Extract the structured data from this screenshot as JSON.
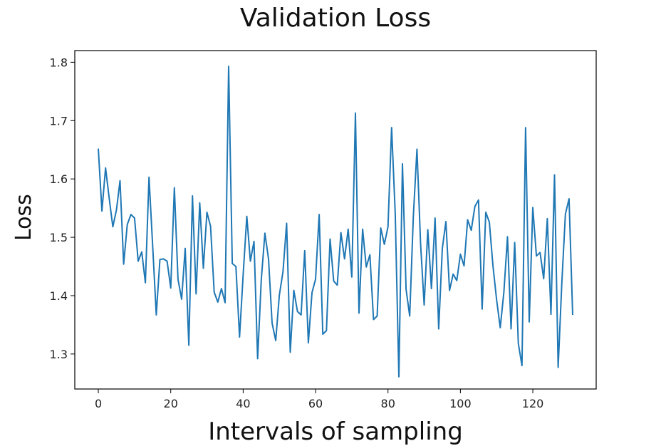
{
  "chart_data": {
    "type": "line",
    "title": "Validation Loss",
    "xlabel": "Intervals of sampling",
    "ylabel": "Loss",
    "xlim": [
      -6.5,
      137.5
    ],
    "ylim": [
      1.24,
      1.82
    ],
    "xticks": [
      0,
      20,
      40,
      60,
      80,
      100,
      120
    ],
    "yticks": [
      1.3,
      1.4,
      1.5,
      1.6,
      1.7,
      1.8
    ],
    "xtick_labels": [
      "0",
      "20",
      "40",
      "60",
      "80",
      "100",
      "120"
    ],
    "ytick_labels": [
      "1.3",
      "1.4",
      "1.5",
      "1.6",
      "1.7",
      "1.8"
    ],
    "grid": false,
    "colors": {
      "line": "#1f77b4"
    },
    "series": [
      {
        "values": [
          1.652,
          1.545,
          1.619,
          1.567,
          1.518,
          1.547,
          1.597,
          1.454,
          1.522,
          1.539,
          1.533,
          1.459,
          1.475,
          1.422,
          1.603,
          1.486,
          1.367,
          1.462,
          1.463,
          1.459,
          1.413,
          1.585,
          1.428,
          1.394,
          1.481,
          1.315,
          1.571,
          1.403,
          1.559,
          1.447,
          1.543,
          1.519,
          1.406,
          1.389,
          1.412,
          1.388,
          1.793,
          1.455,
          1.45,
          1.329,
          1.436,
          1.536,
          1.459,
          1.493,
          1.292,
          1.427,
          1.507,
          1.463,
          1.353,
          1.323,
          1.401,
          1.441,
          1.524,
          1.303,
          1.409,
          1.373,
          1.367,
          1.477,
          1.319,
          1.405,
          1.428,
          1.539,
          1.334,
          1.34,
          1.497,
          1.425,
          1.418,
          1.508,
          1.463,
          1.514,
          1.432,
          1.713,
          1.37,
          1.514,
          1.449,
          1.47,
          1.359,
          1.365,
          1.516,
          1.488,
          1.518,
          1.688,
          1.54,
          1.261,
          1.626,
          1.411,
          1.365,
          1.536,
          1.651,
          1.488,
          1.384,
          1.513,
          1.412,
          1.533,
          1.343,
          1.481,
          1.527,
          1.409,
          1.437,
          1.426,
          1.471,
          1.451,
          1.53,
          1.512,
          1.553,
          1.564,
          1.377,
          1.543,
          1.526,
          1.451,
          1.393,
          1.345,
          1.406,
          1.501,
          1.343,
          1.491,
          1.318,
          1.28,
          1.688,
          1.355,
          1.551,
          1.468,
          1.474,
          1.429,
          1.532,
          1.368,
          1.607,
          1.277,
          1.42,
          1.54,
          1.566,
          1.367
        ]
      }
    ]
  }
}
